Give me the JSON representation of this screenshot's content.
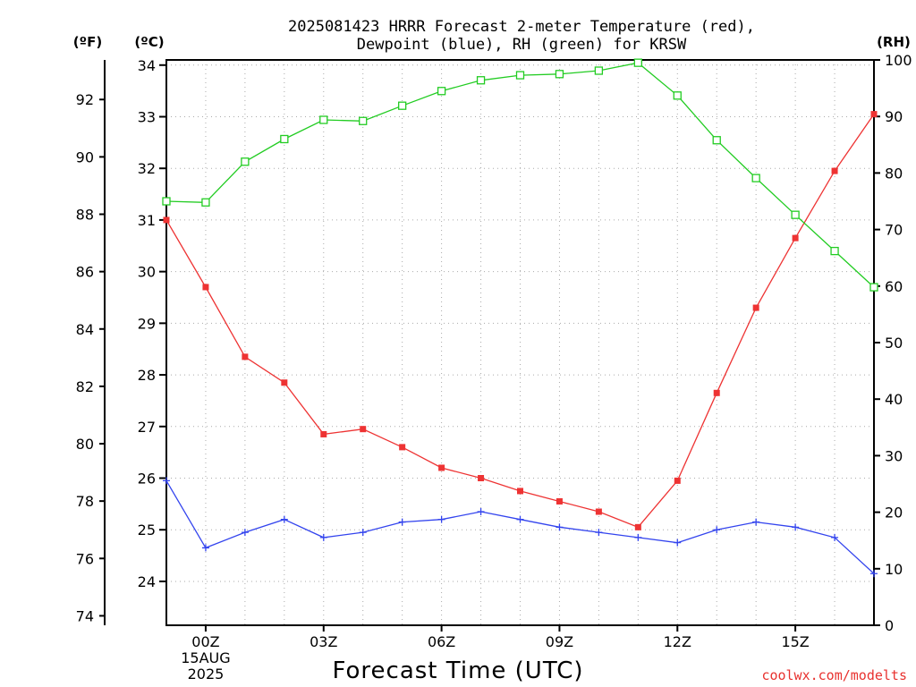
{
  "chart_data": {
    "type": "line",
    "title_line1": "2025081423 HRRR Forecast 2-meter Temperature (red),",
    "title_line2": "Dewpoint (blue), RH (green) for KRSW",
    "xlabel": "Forecast Time (UTC)",
    "credit": "coolwx.com/modelts",
    "left_outer_unit": "(ºF)",
    "left_inner_unit": "(ºC)",
    "right_unit": "(RH)",
    "x": [
      -1,
      0,
      1,
      2,
      3,
      4,
      5,
      6,
      7,
      8,
      9,
      10,
      11,
      12,
      13,
      14,
      15,
      16,
      17
    ],
    "xlim": [
      -1,
      17
    ],
    "x_ticks": [
      {
        "x": 0,
        "label": "00Z",
        "sub1": "15AUG",
        "sub2": "2025"
      },
      {
        "x": 3,
        "label": "03Z",
        "sub1": "",
        "sub2": ""
      },
      {
        "x": 6,
        "label": "06Z",
        "sub1": "",
        "sub2": ""
      },
      {
        "x": 9,
        "label": "09Z",
        "sub1": "",
        "sub2": ""
      },
      {
        "x": 12,
        "label": "12Z",
        "sub1": "",
        "sub2": ""
      },
      {
        "x": 15,
        "label": "15Z",
        "sub1": "",
        "sub2": ""
      }
    ],
    "ylim_c": [
      23.15,
      34.1
    ],
    "yticks_c": [
      24,
      25,
      26,
      27,
      28,
      29,
      30,
      31,
      32,
      33,
      34
    ],
    "yticks_f": [
      74,
      76,
      78,
      80,
      82,
      84,
      86,
      88,
      90,
      92
    ],
    "ylim_rh": [
      0,
      100
    ],
    "yticks_rh": [
      0,
      10,
      20,
      30,
      40,
      50,
      60,
      70,
      80,
      90,
      100
    ],
    "grid": true,
    "series": [
      {
        "key": "temperature",
        "color": "#ee3333",
        "marker": "filled-square",
        "axis": "c",
        "values": [
          31.0,
          29.7,
          28.35,
          27.85,
          26.85,
          26.95,
          26.6,
          26.2,
          26.0,
          25.75,
          25.55,
          25.35,
          25.05,
          25.95,
          27.65,
          29.3,
          30.65,
          31.95,
          33.05
        ]
      },
      {
        "key": "dewpoint",
        "color": "#3344ee",
        "marker": "plus",
        "axis": "c",
        "values": [
          25.95,
          24.65,
          24.95,
          25.2,
          24.85,
          24.95,
          25.15,
          25.2,
          25.35,
          25.2,
          25.05,
          24.95,
          24.85,
          24.75,
          25.0,
          25.15,
          25.05,
          24.85,
          24.15
        ]
      },
      {
        "key": "rh",
        "color": "#22cc22",
        "marker": "open-square",
        "axis": "rh",
        "values": [
          75,
          74.8,
          82,
          86,
          89.4,
          89.2,
          91.9,
          94.5,
          96.4,
          97.3,
          97.5,
          98.1,
          99.5,
          93.7,
          85.8,
          79.1,
          72.6,
          66.2,
          59.8
        ]
      }
    ]
  }
}
